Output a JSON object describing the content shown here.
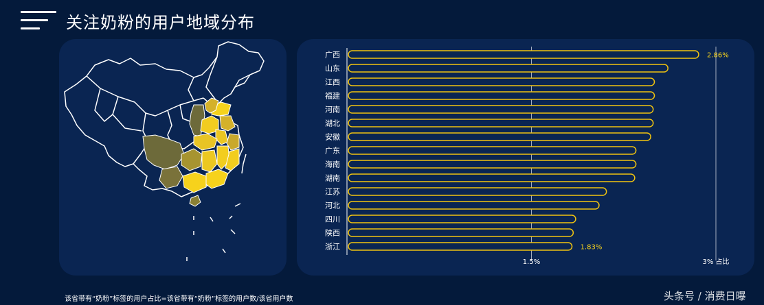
{
  "header": {
    "title": "关注奶粉的用户地域分布",
    "menu_icon": "hamburger-menu-icon"
  },
  "map": {
    "description_icon": "china-province-map",
    "colors": {
      "high": "#f6d21c",
      "mid": "#d4b12a",
      "low": "#6d6a3a",
      "outline": "#ffffff"
    }
  },
  "chart_data": {
    "type": "bar",
    "orientation": "horizontal",
    "categories": [
      "广西",
      "山东",
      "江西",
      "福建",
      "河南",
      "湖北",
      "安徽",
      "广东",
      "海南",
      "湖南",
      "江苏",
      "河北",
      "四川",
      "陕西",
      "浙江"
    ],
    "values": [
      2.86,
      2.61,
      2.5,
      2.5,
      2.49,
      2.49,
      2.47,
      2.35,
      2.35,
      2.34,
      2.11,
      2.05,
      1.86,
      1.84,
      1.83
    ],
    "value_labels": {
      "0": "2.86%",
      "14": "1.83%"
    },
    "xlim": [
      0,
      3
    ],
    "ticks": [
      1.5,
      3
    ],
    "tick_labels": [
      "1.5%",
      "3% 占比"
    ],
    "grid": "vertical",
    "bar_stroke": "#f1c40f",
    "bar_fill": "#0a2552",
    "label_color": "#f6d21c"
  },
  "footer": {
    "note": "该省带有“奶粉”标签的用户占比=该省带有“奶粉”标签的用户数/该省用户数",
    "watermark": "头条号 / 消费日曝"
  }
}
